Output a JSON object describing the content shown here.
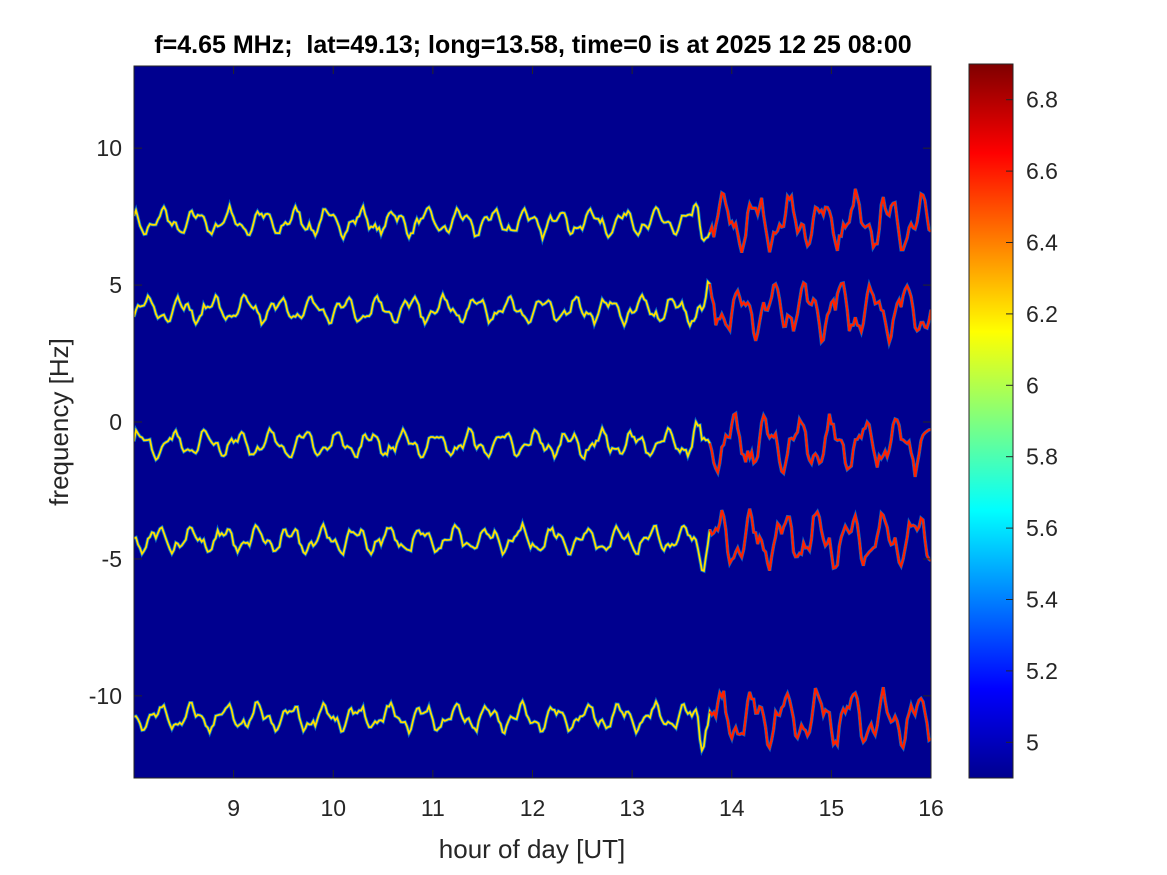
{
  "chart_data": {
    "type": "heatmap",
    "title": "f=4.65 MHz;  lat=49.13; long=13.58, time=0 is at 2025 12 25 08:00",
    "xlabel": "hour of day [UT]",
    "ylabel": "frequency [Hz]",
    "xlim": [
      8,
      16
    ],
    "ylim": [
      -13,
      13
    ],
    "x_ticks": [
      9,
      10,
      11,
      12,
      13,
      14,
      15,
      16
    ],
    "y_ticks": [
      -10,
      -5,
      0,
      5,
      10
    ],
    "colorbar": {
      "colormap": "jet",
      "range": [
        4.9,
        6.9
      ],
      "ticks": [
        5,
        5.2,
        5.4,
        5.6,
        5.8,
        6,
        6.2,
        6.4,
        6.6,
        6.8
      ]
    },
    "background_value": 4.9,
    "traces": [
      {
        "center_hz": 7.3,
        "wiggle_hz": 0.35,
        "peak_value": 6.5
      },
      {
        "center_hz": 4.1,
        "wiggle_hz": 0.35,
        "peak_value": 6.5
      },
      {
        "center_hz": -0.8,
        "wiggle_hz": 0.35,
        "peak_value": 6.8
      },
      {
        "center_hz": -4.3,
        "wiggle_hz": 0.35,
        "peak_value": 6.8
      },
      {
        "center_hz": -10.8,
        "wiggle_hz": 0.35,
        "peak_value": 6.7
      }
    ],
    "grid": false
  },
  "colors": {
    "background": "#00008f",
    "axis": "#262626"
  }
}
